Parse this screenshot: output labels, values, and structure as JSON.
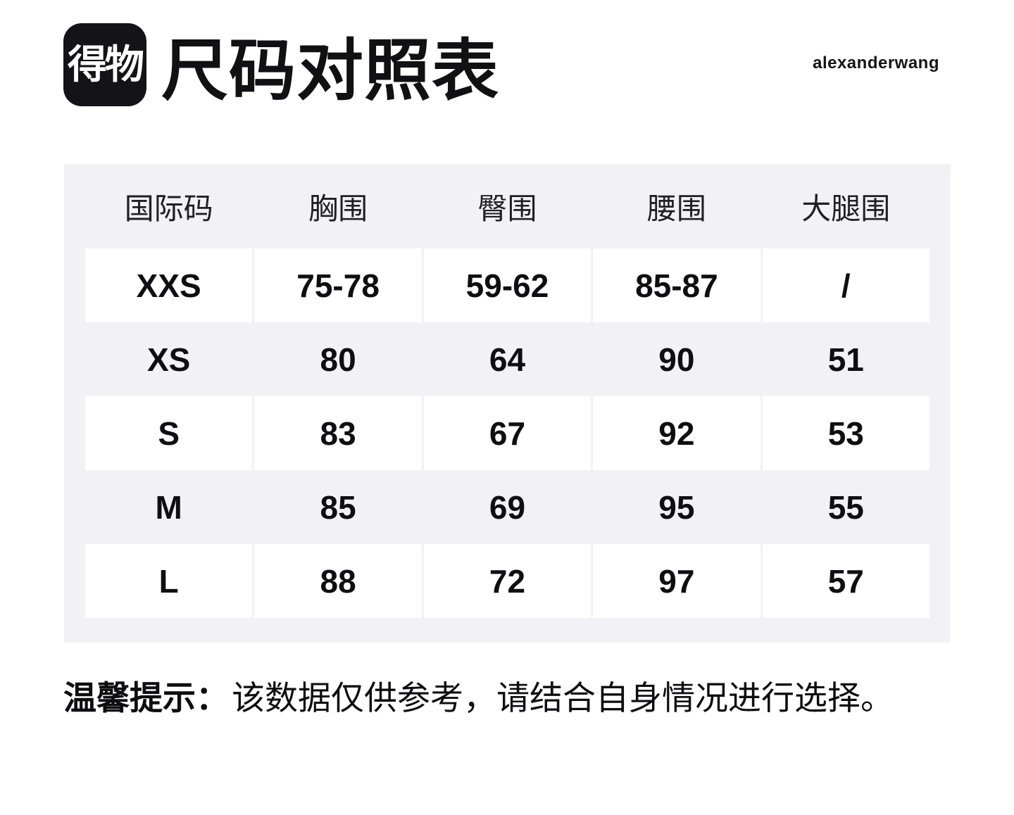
{
  "header": {
    "logo_text": "得物",
    "title": "尺码对照表",
    "brand": "alexanderwang"
  },
  "table": {
    "columns": [
      "国际码",
      "胸围",
      "臀围",
      "腰围",
      "大腿围"
    ],
    "rows": [
      [
        "XXS",
        "75-78",
        "59-62",
        "85-87",
        "/"
      ],
      [
        "XS",
        "80",
        "64",
        "90",
        "51"
      ],
      [
        "S",
        "83",
        "67",
        "92",
        "53"
      ],
      [
        "M",
        "85",
        "69",
        "95",
        "55"
      ],
      [
        "L",
        "88",
        "72",
        "97",
        "57"
      ]
    ]
  },
  "tip": {
    "label": "温馨提示：",
    "text": "该数据仅供参考，请结合自身情况进行选择。"
  },
  "colors": {
    "logo_bg": "#131318",
    "table_bg": "#f2f2f6",
    "text_dark": "#111114"
  }
}
